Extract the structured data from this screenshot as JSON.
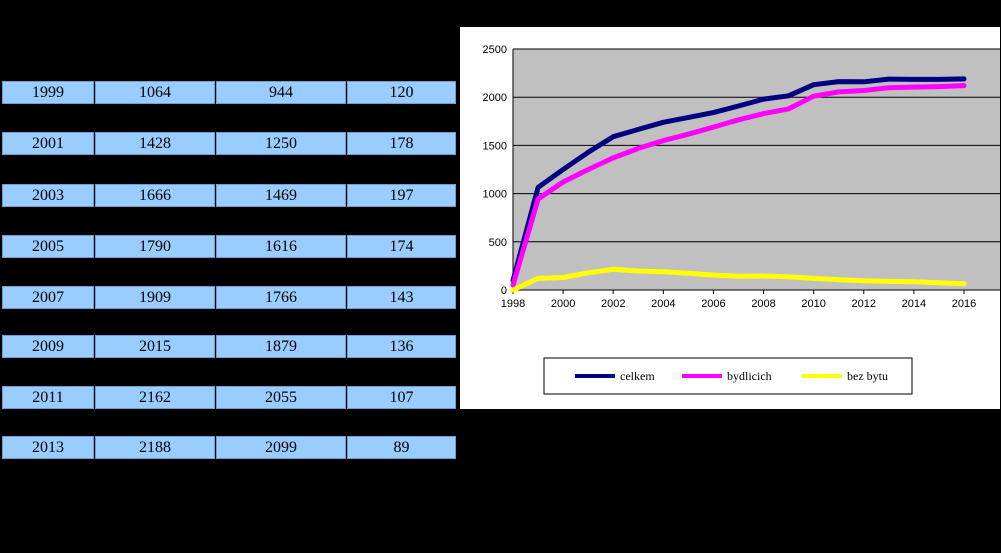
{
  "table": {
    "rows": [
      [
        "1999",
        "1064",
        "944",
        "120"
      ],
      [
        "2001",
        "1428",
        "1250",
        "178"
      ],
      [
        "2003",
        "1666",
        "1469",
        "197"
      ],
      [
        "2005",
        "1790",
        "1616",
        "174"
      ],
      [
        "2007",
        "1909",
        "1766",
        "143"
      ],
      [
        "2009",
        "2015",
        "1879",
        "136"
      ],
      [
        "2011",
        "2162",
        "2055",
        "107"
      ],
      [
        "2013",
        "2188",
        "2099",
        "89"
      ]
    ]
  },
  "chart_data": {
    "type": "line",
    "x": [
      1998,
      1999,
      2000,
      2001,
      2002,
      2003,
      2004,
      2005,
      2006,
      2007,
      2008,
      2009,
      2010,
      2011,
      2012,
      2013,
      2014,
      2015,
      2016
    ],
    "series": [
      {
        "name": "celkem",
        "color": "#000080",
        "values": [
          100,
          1064,
          1250,
          1428,
          1590,
          1666,
          1740,
          1790,
          1840,
          1909,
          1980,
          2015,
          2130,
          2162,
          2160,
          2188,
          2185,
          2185,
          2190
        ]
      },
      {
        "name": "bydlicich",
        "color": "#ff00ff",
        "values": [
          50,
          944,
          1120,
          1250,
          1370,
          1469,
          1550,
          1616,
          1690,
          1766,
          1830,
          1879,
          2010,
          2055,
          2070,
          2099,
          2105,
          2110,
          2120
        ]
      },
      {
        "name": "bez bytu",
        "color": "#ffff00",
        "values": [
          0,
          120,
          130,
          178,
          215,
          197,
          190,
          174,
          155,
          143,
          145,
          136,
          120,
          107,
          95,
          89,
          85,
          75,
          65
        ]
      }
    ],
    "xticks": [
      "1998",
      "2000",
      "2002",
      "2004",
      "2006",
      "2008",
      "2010",
      "2012",
      "2014",
      "2016"
    ],
    "yticks": [
      "0",
      "500",
      "1000",
      "1500",
      "2000",
      "2500"
    ],
    "xlim": [
      1998,
      2016
    ],
    "ylim": [
      0,
      2500
    ],
    "grid": true,
    "legend": "bottom",
    "plot_background": "#c0c0c0"
  }
}
